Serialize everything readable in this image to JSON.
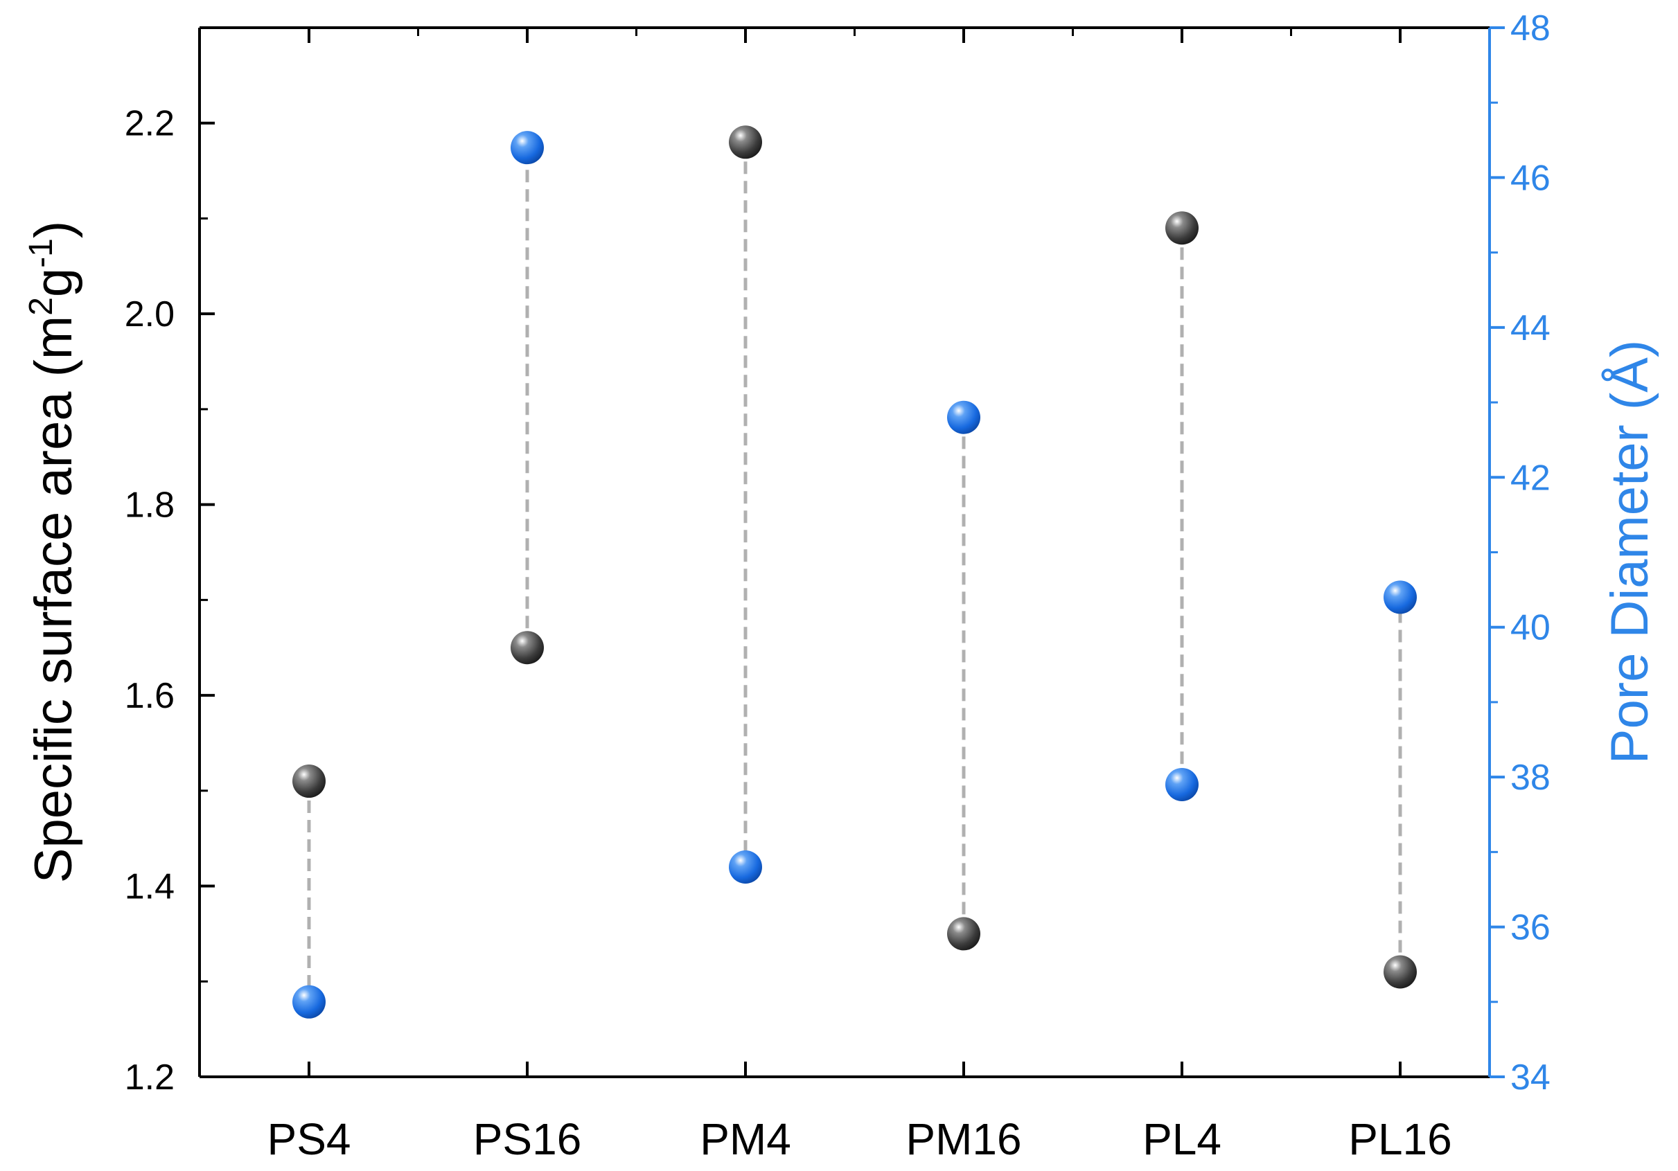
{
  "chart_data": {
    "type": "scatter",
    "categories": [
      "PS4",
      "PS16",
      "PM4",
      "PM16",
      "PL4",
      "PL16"
    ],
    "series": [
      {
        "axis": "left",
        "color": "#3a3a3a",
        "values": [
          1.51,
          1.65,
          2.18,
          1.35,
          2.09,
          1.31
        ]
      },
      {
        "axis": "right",
        "color": "#1a6fe0",
        "values": [
          35.0,
          46.4,
          36.8,
          42.8,
          37.9,
          40.4
        ]
      }
    ],
    "connector": {
      "style": "dashed",
      "color": "#b0b0b0"
    },
    "yaxis_left": {
      "label_parts": [
        "Specific surface area (m",
        "2",
        "g",
        "-1",
        ")"
      ],
      "ylim": [
        1.2,
        2.3
      ],
      "ticks": [
        "1.2",
        "1.4",
        "1.6",
        "1.8",
        "2.0",
        "2.2"
      ],
      "tick_values": [
        1.2,
        1.4,
        1.6,
        1.8,
        2.0,
        2.2
      ],
      "color": "#000000"
    },
    "yaxis_right": {
      "label": "Pore Diameter (Å)",
      "ylim": [
        34,
        48
      ],
      "ticks": [
        "34",
        "36",
        "38",
        "40",
        "42",
        "44",
        "46",
        "48"
      ],
      "tick_values": [
        34,
        36,
        38,
        40,
        42,
        44,
        46,
        48
      ],
      "color": "#2f86e8"
    },
    "grid": false,
    "legend": "none"
  }
}
